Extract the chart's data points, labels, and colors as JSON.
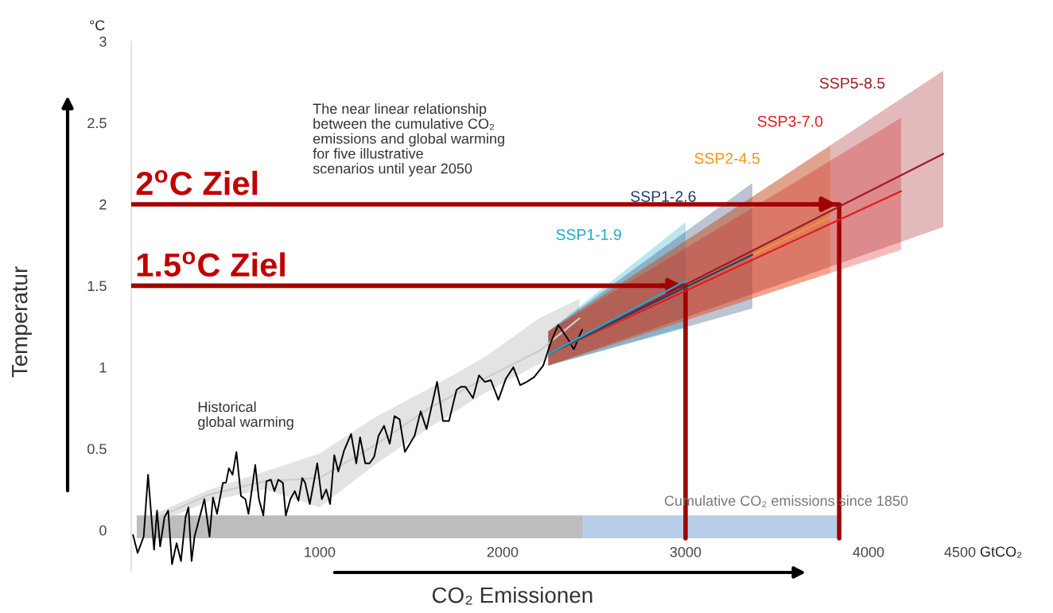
{
  "chart_data": {
    "type": "line",
    "xlabel": "CO₂ Emissionen",
    "ylabel": "Temperatur",
    "xlim": [
      -30,
      4500
    ],
    "ylim": [
      -0.25,
      3
    ],
    "xticks": [
      1000,
      2000,
      3000,
      4000,
      4500
    ],
    "yticks": [
      0,
      0.5,
      1,
      1.5,
      2,
      2.5,
      3
    ],
    "annotations": [
      "°C",
      "GtCO₂",
      "The near linear relationship between the cumulative CO₂ emissions and global warming for five illustrative scenarios until year 2050",
      "Historical global warming",
      "Cumulative CO₂ emissions since 1850",
      "2$^{o}$C Ziel",
      "1.5$^{o}$C Ziel"
    ],
    "series": [
      {
        "color": "#bdbdbd",
        "x": [
          0,
          2440
        ],
        "values": [
          null,
          null
        ],
        "lower": [
          -0.05,
          -0.05
        ],
        "upper": [
          0.09,
          0.09
        ]
      },
      {
        "color": "#b7cfe8",
        "x": [
          2440,
          3840
        ],
        "values": [
          null,
          null
        ],
        "lower": [
          -0.05,
          -0.05
        ],
        "upper": [
          0.09,
          0.09
        ]
      },
      {
        "color": "#cccccc",
        "x": [
          100,
          400,
          700,
          1000,
          1300,
          1600,
          1900,
          2200,
          2420
        ],
        "values": [
          0.07,
          0.22,
          0.3,
          0.32,
          0.52,
          0.75,
          0.93,
          1.1,
          1.3
        ],
        "lower": [
          0.04,
          0.18,
          0.25,
          0.14,
          0.4,
          0.63,
          0.84,
          1.02,
          1.19
        ],
        "upper": [
          0.1,
          0.25,
          0.36,
          0.47,
          0.69,
          0.87,
          1.06,
          1.3,
          1.42
        ]
      },
      {
        "color": "#000000",
        "x": [
          -20,
          5,
          38,
          62,
          79,
          95,
          111,
          128,
          152,
          172,
          193,
          218,
          242,
          267,
          283,
          300,
          316,
          370,
          398,
          417,
          439,
          471,
          488,
          504,
          524,
          545,
          570,
          594,
          611,
          648,
          668,
          692,
          709,
          733,
          753,
          774,
          799,
          815,
          840,
          864,
          884,
          905,
          921,
          946,
          987,
          1012,
          1036,
          1057,
          1080,
          1102,
          1134,
          1172,
          1200,
          1221,
          1249,
          1273,
          1298,
          1322,
          1352,
          1383,
          1409,
          1437,
          1466,
          1519,
          1552,
          1584,
          1642,
          1674,
          1707,
          1748,
          1772,
          1797,
          1838,
          1871,
          1903,
          1936,
          1977,
          2018,
          2059,
          2096,
          2132,
          2173,
          2222,
          2263,
          2304,
          2353,
          2389,
          2435
        ],
        "values": [
          -0.03,
          -0.14,
          -0.04,
          0.34,
          0.1,
          -0.12,
          0.12,
          -0.1,
          0.08,
          0.12,
          -0.21,
          -0.08,
          -0.19,
          0.08,
          0.14,
          -0.19,
          -0.04,
          0.19,
          -0.04,
          0.2,
          0.1,
          0.29,
          0.29,
          0.38,
          0.34,
          0.48,
          0.21,
          0.19,
          0.1,
          0.4,
          0.19,
          0.09,
          0.3,
          0.31,
          0.24,
          0.31,
          0.29,
          0.09,
          0.19,
          0.24,
          0.18,
          0.32,
          0.29,
          0.16,
          0.41,
          0.19,
          0.25,
          0.16,
          0.46,
          0.36,
          0.49,
          0.59,
          0.41,
          0.57,
          0.41,
          0.41,
          0.45,
          0.58,
          0.64,
          0.53,
          0.7,
          0.68,
          0.48,
          0.58,
          0.73,
          0.62,
          0.91,
          0.67,
          0.67,
          0.86,
          0.88,
          0.88,
          0.81,
          0.95,
          0.91,
          0.92,
          0.8,
          0.93,
          1.0,
          0.89,
          0.91,
          0.94,
          1.01,
          1.15,
          1.26,
          1.18,
          1.11,
          1.23
        ]
      },
      {
        "name": "SSP1-1.9",
        "color": "#1fa9d1",
        "x": [
          2250,
          3000
        ],
        "values": [
          1.08,
          1.53
        ],
        "lower": [
          1.01,
          1.24
        ],
        "upper": [
          1.22,
          1.89
        ]
      },
      {
        "name": "SSP1-2.6",
        "color": "#1c3c6e",
        "x": [
          2250,
          3365
        ],
        "values": [
          1.08,
          1.69
        ],
        "lower": [
          1.01,
          1.36
        ],
        "upper": [
          1.22,
          2.13
        ]
      },
      {
        "name": "SSP2-4.5",
        "color": "#f7941d",
        "x": [
          2250,
          3791
        ],
        "values": [
          1.08,
          1.92
        ],
        "lower": [
          1.01,
          1.58
        ],
        "upper": [
          1.22,
          2.36
        ]
      },
      {
        "name": "SSP3-7.0",
        "color": "#e31a1c",
        "x": [
          2250,
          4178
        ],
        "values": [
          1.08,
          2.08
        ],
        "lower": [
          1.01,
          1.72
        ],
        "upper": [
          1.22,
          2.53
        ]
      },
      {
        "name": "SSP5-8.5",
        "color": "#9e1b1f",
        "x": [
          2250,
          4409
        ],
        "values": [
          1.08,
          2.31
        ],
        "lower": [
          1.01,
          1.86
        ],
        "upper": [
          1.22,
          2.82
        ]
      },
      {
        "color": "#a00000",
        "x": [
          -30,
          3840,
          3840
        ],
        "values": [
          2,
          2,
          -0.05
        ]
      },
      {
        "color": "#a00000",
        "x": [
          -30,
          3000,
          3000
        ],
        "values": [
          1.5,
          1.5,
          -0.05
        ]
      }
    ]
  }
}
